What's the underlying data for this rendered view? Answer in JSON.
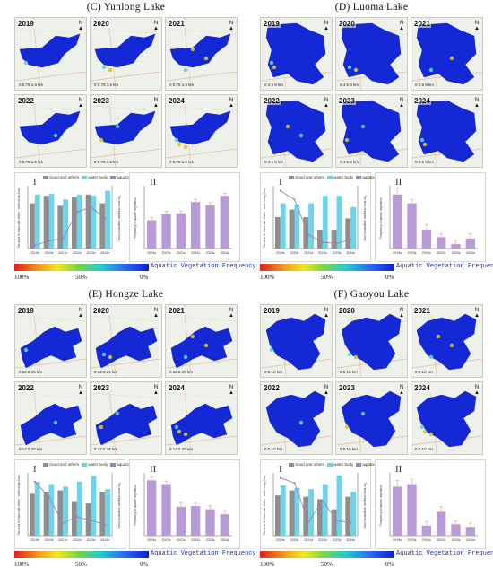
{
  "panels": [
    {
      "id": "C",
      "title": "(C) Yunlong Lake",
      "years": [
        "2019",
        "2020",
        "2021",
        "2022",
        "2023",
        "2024"
      ],
      "scale": "0  0.75  1.5 km",
      "north": "N",
      "chart1": {
        "label": "I",
        "legend": [
          "cloud and others",
          "water body",
          "aquatic vegetation"
        ],
        "ylabel": "The area of cloud and others · water body (km²)",
        "y2label": "The area of aquatic vegetation (km²)",
        "categories": [
          "2019s",
          "2020s",
          "2021s",
          "2022s",
          "2023s",
          "2024s"
        ],
        "cloud": [
          0.72,
          0.84,
          0.68,
          0.82,
          0.86,
          0.72
        ],
        "water": [
          0.86,
          0.87,
          0.78,
          0.86,
          0.84,
          0.92
        ],
        "veg": [
          0.05,
          0.12,
          0.16,
          0.58,
          0.66,
          0.48
        ]
      },
      "chart2": {
        "label": "II",
        "ylabel": "Frequency of aquatic vegetation",
        "categories": [
          "2019s",
          "2020s",
          "2021s",
          "2022s",
          "2023s",
          "2024s"
        ],
        "values": [
          0.45,
          0.55,
          0.56,
          0.74,
          0.69,
          0.84
        ],
        "errors": [
          0.04,
          0.04,
          0.04,
          0.04,
          0.04,
          0.04
        ]
      }
    },
    {
      "id": "D",
      "title": "(D) Luoma Lake",
      "years": [
        "2019",
        "2020",
        "2021",
        "2022",
        "2023",
        "2024"
      ],
      "scale": "0  4.5  9 km",
      "north": "N",
      "chart1": {
        "label": "I",
        "legend": [
          "cloud and others",
          "water body",
          "aquatic vegetation"
        ],
        "ylabel": "The area of cloud and others · water body (km²)",
        "y2label": "The area of aquatic vegetation (km²)",
        "categories": [
          "2019s",
          "2020s",
          "2021s",
          "2022s",
          "2023s",
          "2024s"
        ],
        "cloud": [
          0.5,
          0.62,
          0.5,
          0.3,
          0.3,
          0.48
        ],
        "water": [
          0.72,
          0.7,
          0.72,
          0.84,
          0.84,
          0.66
        ],
        "veg": [
          0.92,
          0.78,
          0.22,
          0.1,
          0.08,
          0.14
        ]
      },
      "chart2": {
        "label": "II",
        "ylabel": "Frequency of aquatic vegetation",
        "categories": [
          "2019s",
          "2020s",
          "2021s",
          "2022s",
          "2023s",
          "2024s"
        ],
        "values": [
          0.86,
          0.72,
          0.3,
          0.18,
          0.07,
          0.16
        ],
        "errors": [
          0.1,
          0.06,
          0.08,
          0.06,
          0.06,
          0.08
        ]
      }
    },
    {
      "id": "E",
      "title": "(E) Hongze Lake",
      "years": [
        "2019",
        "2020",
        "2021",
        "2022",
        "2023",
        "2024"
      ],
      "scale": "0  12.5  25 km",
      "north": "N",
      "chart1": {
        "label": "I",
        "legend": [
          "cloud and others",
          "water body",
          "aquatic vegetation"
        ],
        "ylabel": "The area of cloud and others · water body (km²)",
        "y2label": "The area of aquatic vegetation (km²)",
        "categories": [
          "2019s",
          "2020s",
          "2021s",
          "2022s",
          "2023s",
          "2024s"
        ],
        "cloud": [
          0.68,
          0.7,
          0.72,
          0.55,
          0.52,
          0.7
        ],
        "water": [
          0.86,
          0.82,
          0.78,
          0.86,
          0.95,
          0.74
        ],
        "veg": [
          0.86,
          0.62,
          0.2,
          0.3,
          0.24,
          0.18
        ]
      },
      "chart2": {
        "label": "II",
        "ylabel": "Frequency of aquatic vegetation",
        "categories": [
          "2019s",
          "2020s",
          "2021s",
          "2022s",
          "2023s",
          "2024s"
        ],
        "values": [
          0.88,
          0.82,
          0.46,
          0.47,
          0.42,
          0.34
        ],
        "errors": [
          0.06,
          0.05,
          0.08,
          0.06,
          0.06,
          0.06
        ]
      }
    },
    {
      "id": "F",
      "title": "(F) Gaoyou Lake",
      "years": [
        "2019",
        "2020",
        "2021",
        "2022",
        "2023",
        "2024"
      ],
      "scale": "0  5  10 km",
      "north": "N",
      "chart1": {
        "label": "I",
        "legend": [
          "cloud and others",
          "water body",
          "aquatic vegetation"
        ],
        "ylabel": "The area of cloud and others · water body (km²)",
        "y2label": "The area of aquatic vegetation (km²)",
        "categories": [
          "2019s",
          "2020s",
          "2021s",
          "2022s",
          "2023s",
          "2024s"
        ],
        "cloud": [
          0.64,
          0.72,
          0.62,
          0.58,
          0.42,
          0.62
        ],
        "water": [
          0.8,
          0.76,
          0.74,
          0.82,
          0.96,
          0.7
        ],
        "veg": [
          0.92,
          0.84,
          0.22,
          0.56,
          0.24,
          0.2
        ]
      },
      "chart2": {
        "label": "II",
        "ylabel": "Frequency of aquatic vegetation",
        "categories": [
          "2019s",
          "2020s",
          "2021s",
          "2022s",
          "2023s",
          "2024s"
        ],
        "values": [
          0.78,
          0.82,
          0.16,
          0.38,
          0.18,
          0.14
        ],
        "errors": [
          0.1,
          0.08,
          0.06,
          0.08,
          0.06,
          0.06
        ]
      }
    }
  ],
  "gradient": {
    "title": "Aquatic Vegetation  Frequency",
    "ticks": [
      "100%",
      "50%",
      "0%"
    ]
  },
  "colors": {
    "cloud": "#8e8e8e",
    "water": "#6fd3ea",
    "veg": "#9c7ec0",
    "bar2": "#b79ad6",
    "lake": "#1428d6",
    "land": "#eef0ea"
  }
}
